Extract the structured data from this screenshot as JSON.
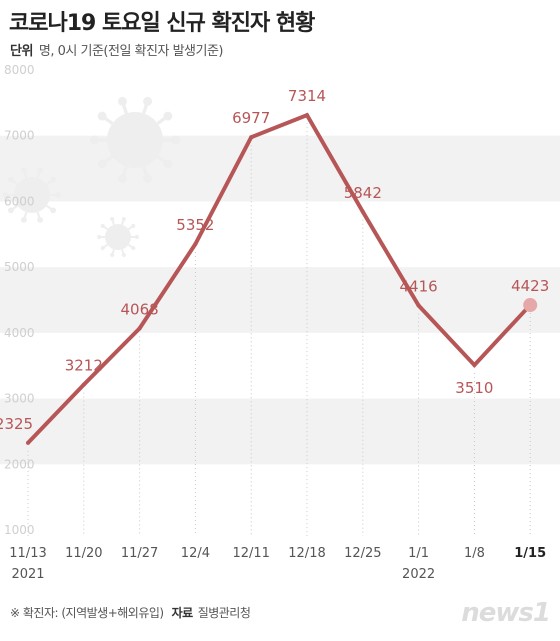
{
  "title": "코로나19 토요일 신규 확진자 현황",
  "subtitle": {
    "unit_key": "단위",
    "unit_text": "명, 0시 기준(전일 확진자 발생기준)"
  },
  "footnote": {
    "note": "※ 확진자: (지역발생+해외유입)",
    "source_key": "자료",
    "source": "질병관리청"
  },
  "logo": "news1",
  "colors": {
    "line": "#b75657",
    "label": "#b75657",
    "band": "#f2f2f2",
    "tick": "#c8c8c8",
    "decor": "#eeeeee"
  },
  "chart_data": {
    "type": "line",
    "categories": [
      "11/13",
      "11/20",
      "11/27",
      "12/4",
      "12/11",
      "12/18",
      "12/25",
      "1/1",
      "1/8",
      "1/15"
    ],
    "years": [
      "2021",
      "",
      "",
      "",
      "",
      "",
      "",
      "2022",
      "",
      ""
    ],
    "values": [
      2325,
      3212,
      4068,
      5352,
      6977,
      7314,
      5842,
      4416,
      3510,
      4423
    ],
    "value_labels": [
      "2325",
      "3212",
      "4068",
      "5352",
      "6977",
      "7314",
      "5842",
      "4416",
      "3510",
      "4423"
    ],
    "label_position": [
      "above",
      "above",
      "above",
      "above",
      "above",
      "above",
      "above",
      "above",
      "below",
      "above"
    ],
    "y_ticks": [
      "1000",
      "2000",
      "3000",
      "4000",
      "5000",
      "6000",
      "7000",
      "8000"
    ],
    "ylim": [
      1000,
      8000
    ],
    "highlight_last": true,
    "grid": "alternating-bands"
  }
}
